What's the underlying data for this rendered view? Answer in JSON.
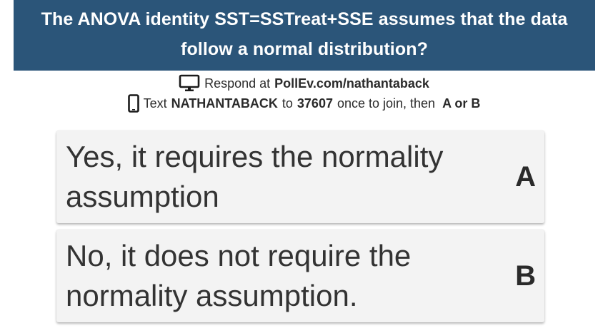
{
  "question": {
    "text": "The ANOVA identity SST=SSTreat+SSE assumes that the data follow a normal distribution?"
  },
  "instructions": {
    "web": {
      "icon": "monitor-icon",
      "prefix": "Respond at",
      "url": "PollEv.com/nathantaback"
    },
    "sms": {
      "icon": "phone-icon",
      "prefix": "Text",
      "keyword": "NATHANTABACK",
      "to": "to",
      "number": "37607",
      "suffix": "once to join, then",
      "choices": "A or B"
    }
  },
  "options": [
    {
      "text": "Yes, it requires the normality assumption",
      "letter": "A"
    },
    {
      "text": "No, it does not require the normality assumption.",
      "letter": "B"
    }
  ],
  "colors": {
    "header_bg": "#2b5579",
    "header_text": "#ffffff",
    "option_bg": "#f3f3f3"
  }
}
